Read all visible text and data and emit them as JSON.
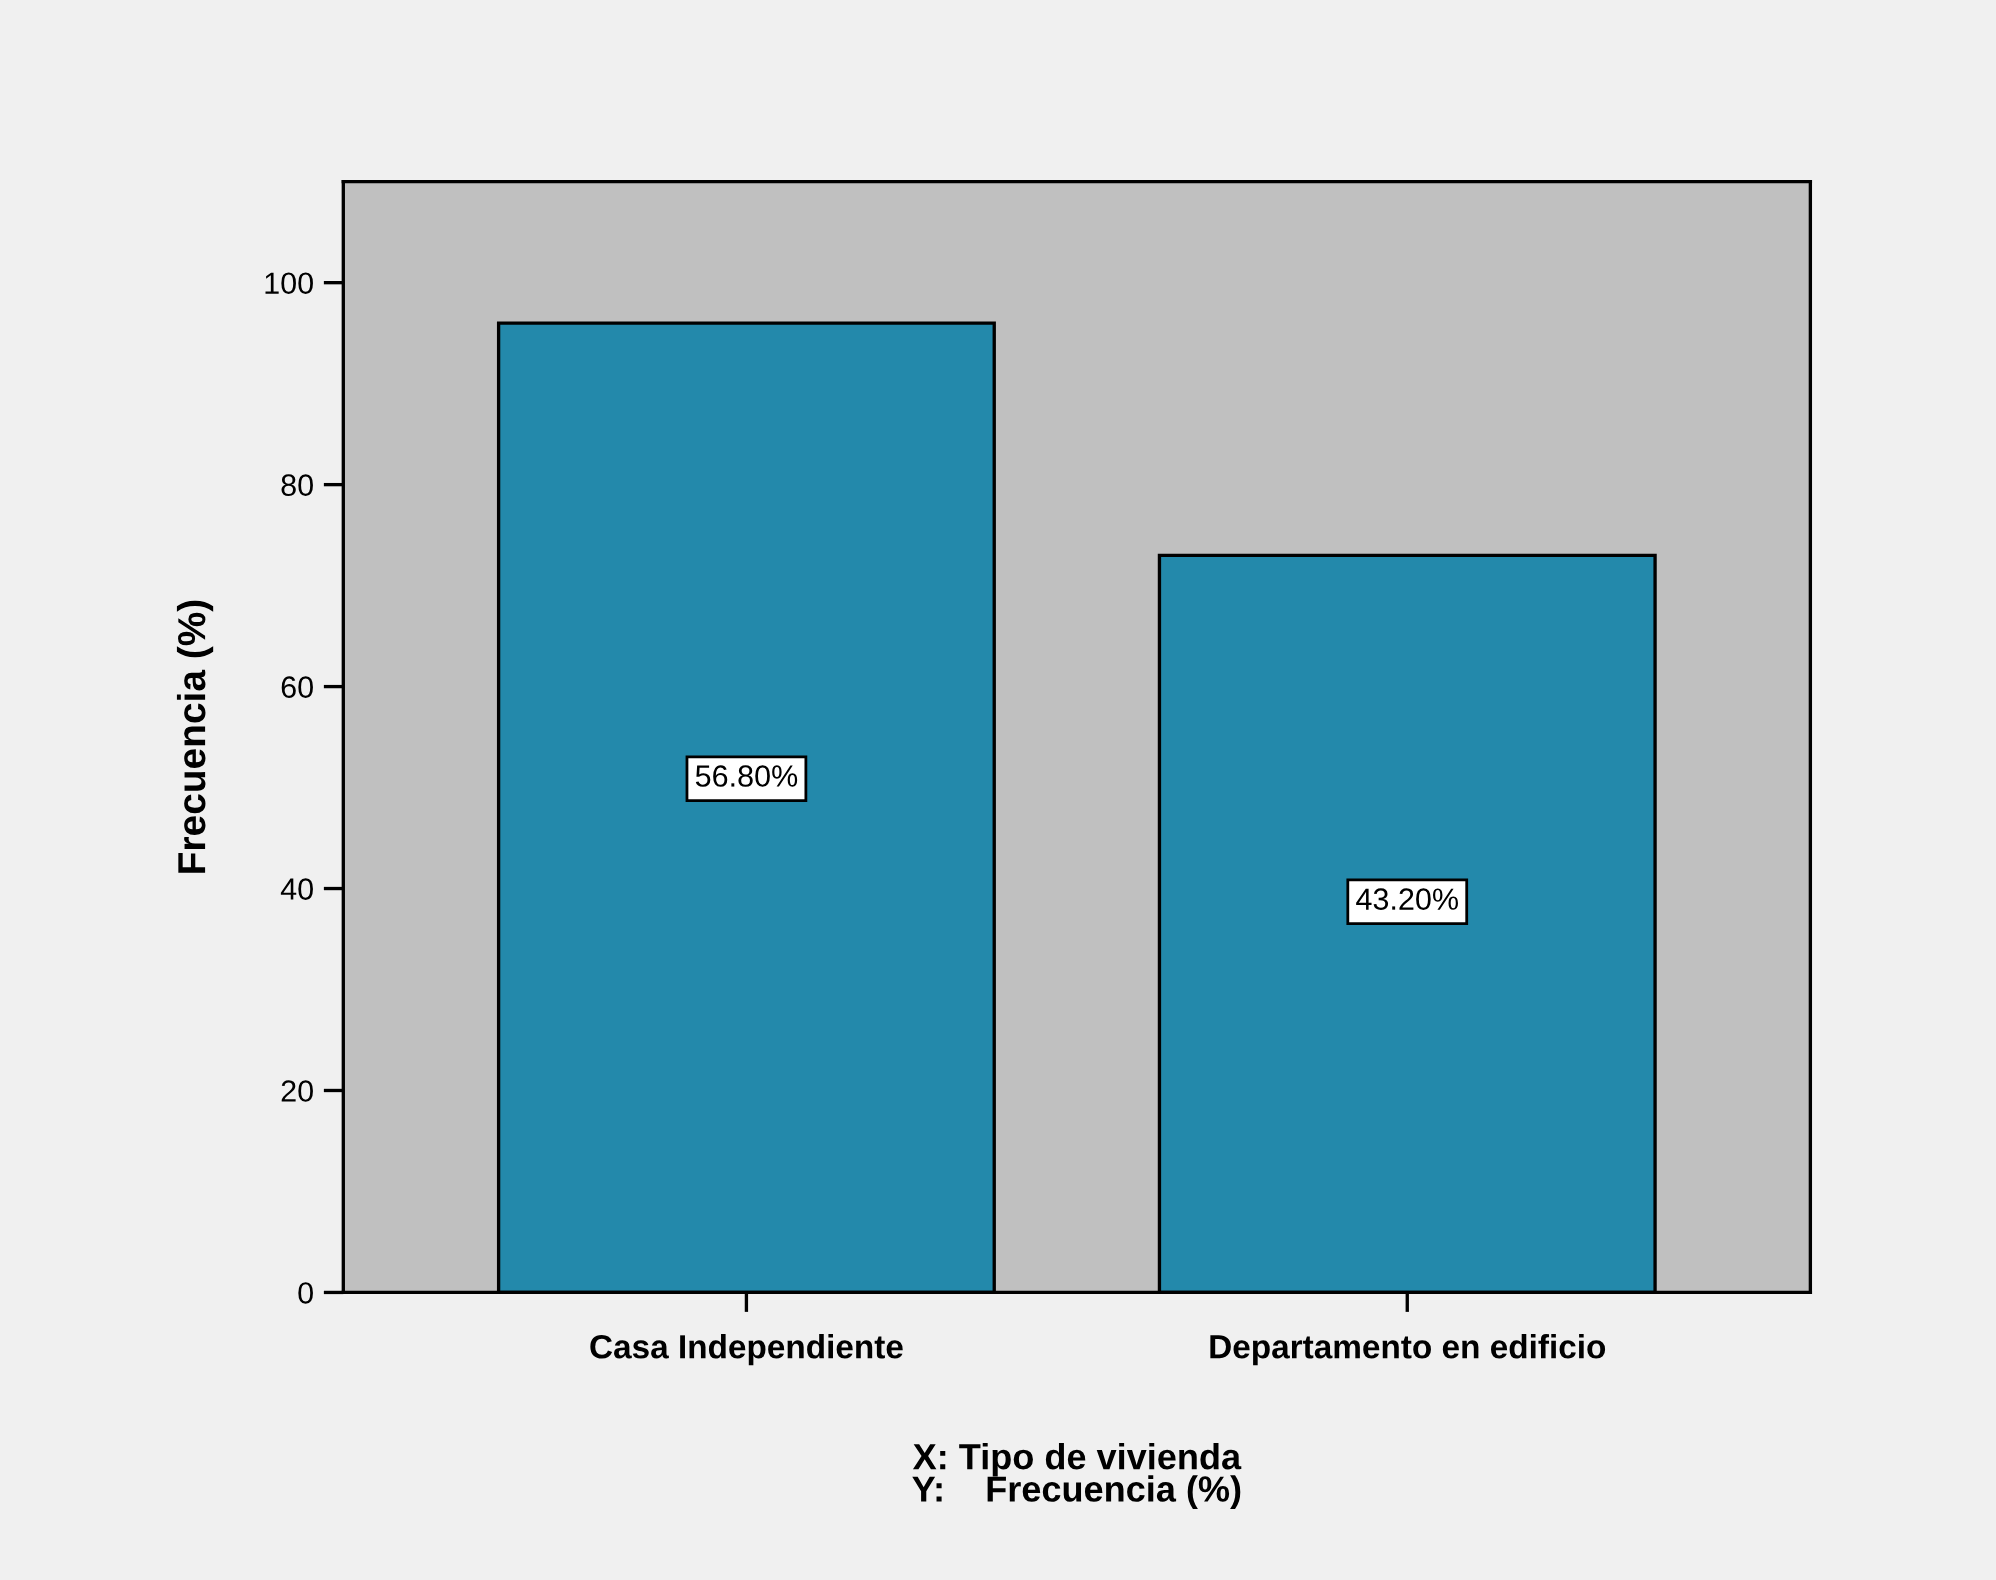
{
  "chart_data": {
    "type": "bar",
    "categories": [
      "Casa Independiente",
      "Departamento en edificio"
    ],
    "values": [
      96,
      73
    ],
    "annotations": [
      "56.80%",
      "43.20%"
    ],
    "color": "#2389ab",
    "ylabel": "Frecuencia (%)",
    "xlabel": "X: Tipo de vivienda\nY:    Frecuencia (%)",
    "ylim": [
      0,
      110
    ],
    "yticks": [
      0,
      20,
      40,
      60,
      80,
      100
    ],
    "grid": false,
    "legend": false
  }
}
